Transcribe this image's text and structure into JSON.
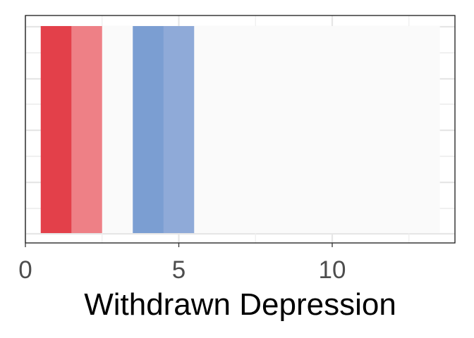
{
  "chart_data": {
    "type": "bar",
    "title": "",
    "xlabel": "Withdrawn Depression",
    "ylabel": "",
    "xlim": [
      0,
      14
    ],
    "x_ticks": [
      0,
      5,
      10
    ],
    "x_tick_labels": [
      "0",
      "5",
      "10"
    ],
    "grid": true,
    "bars": [
      {
        "x": 1,
        "color": "#E3404A"
      },
      {
        "x": 2,
        "color": "#EE8086"
      },
      {
        "x": 3,
        "color": "#FAFAFA"
      },
      {
        "x": 4,
        "color": "#7B9ED2"
      },
      {
        "x": 5,
        "color": "#8FAAD8"
      },
      {
        "x": 6,
        "color": "#FAFAFA"
      },
      {
        "x": 7,
        "color": "#FAFAFA"
      },
      {
        "x": 8,
        "color": "#FAFAFA"
      },
      {
        "x": 9,
        "color": "#FAFAFA"
      },
      {
        "x": 10,
        "color": "#FAFAFA"
      },
      {
        "x": 11,
        "color": "#FAFAFA"
      },
      {
        "x": 12,
        "color": "#FAFAFA"
      },
      {
        "x": 13,
        "color": "#FAFAFA"
      }
    ],
    "bar_width": 1
  }
}
